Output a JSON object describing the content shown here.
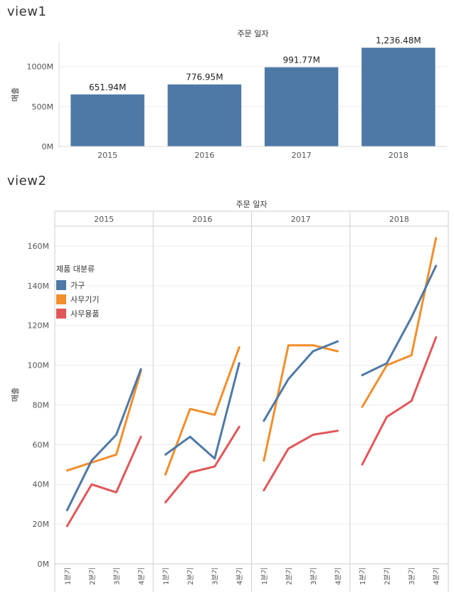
{
  "views": {
    "view1": {
      "title": "view1"
    },
    "view2": {
      "title": "view2"
    }
  },
  "chart_data": [
    {
      "type": "bar",
      "title": "주문 일자",
      "ylabel": "매출",
      "categories": [
        "2015",
        "2016",
        "2017",
        "2018"
      ],
      "values": [
        651.94,
        776.95,
        991.77,
        1236.48
      ],
      "value_labels": [
        "651.94M",
        "776.95M",
        "991.77M",
        "1,236.48M"
      ],
      "ylim": [
        0,
        1300
      ],
      "yticks": [
        0,
        500,
        1000
      ],
      "ytick_labels": [
        "0M",
        "500M",
        "1000M"
      ],
      "color": "#4e79a7",
      "grid": true
    },
    {
      "type": "line",
      "title": "주문 일자",
      "ylabel": "매출",
      "panels": [
        "2015",
        "2016",
        "2017",
        "2018"
      ],
      "categories": [
        "1분기",
        "2분기",
        "3분기",
        "4분기"
      ],
      "ylim": [
        0,
        170
      ],
      "yticks": [
        0,
        20,
        40,
        60,
        80,
        100,
        120,
        140,
        160
      ],
      "ytick_labels": [
        "0M",
        "20M",
        "40M",
        "60M",
        "80M",
        "100M",
        "120M",
        "140M",
        "160M"
      ],
      "legend": {
        "title": "제품 대분류",
        "placement": "top-left"
      },
      "series": [
        {
          "name": "가구",
          "color": "#4e79a7",
          "values": [
            [
              27,
              52,
              65,
              98
            ],
            [
              55,
              64,
              53,
              101
            ],
            [
              72,
              93,
              107,
              112
            ],
            [
              95,
              101,
              124,
              150
            ]
          ]
        },
        {
          "name": "사무기기",
          "color": "#f28e2b",
          "values": [
            [
              47,
              51,
              55,
              97
            ],
            [
              45,
              78,
              75,
              109
            ],
            [
              52,
              110,
              110,
              107
            ],
            [
              79,
              100,
              105,
              164
            ]
          ]
        },
        {
          "name": "사무용품",
          "color": "#e15759",
          "values": [
            [
              19,
              40,
              36,
              64
            ],
            [
              31,
              46,
              49,
              69
            ],
            [
              37,
              58,
              65,
              67
            ],
            [
              50,
              74,
              82,
              114
            ]
          ]
        }
      ]
    }
  ]
}
